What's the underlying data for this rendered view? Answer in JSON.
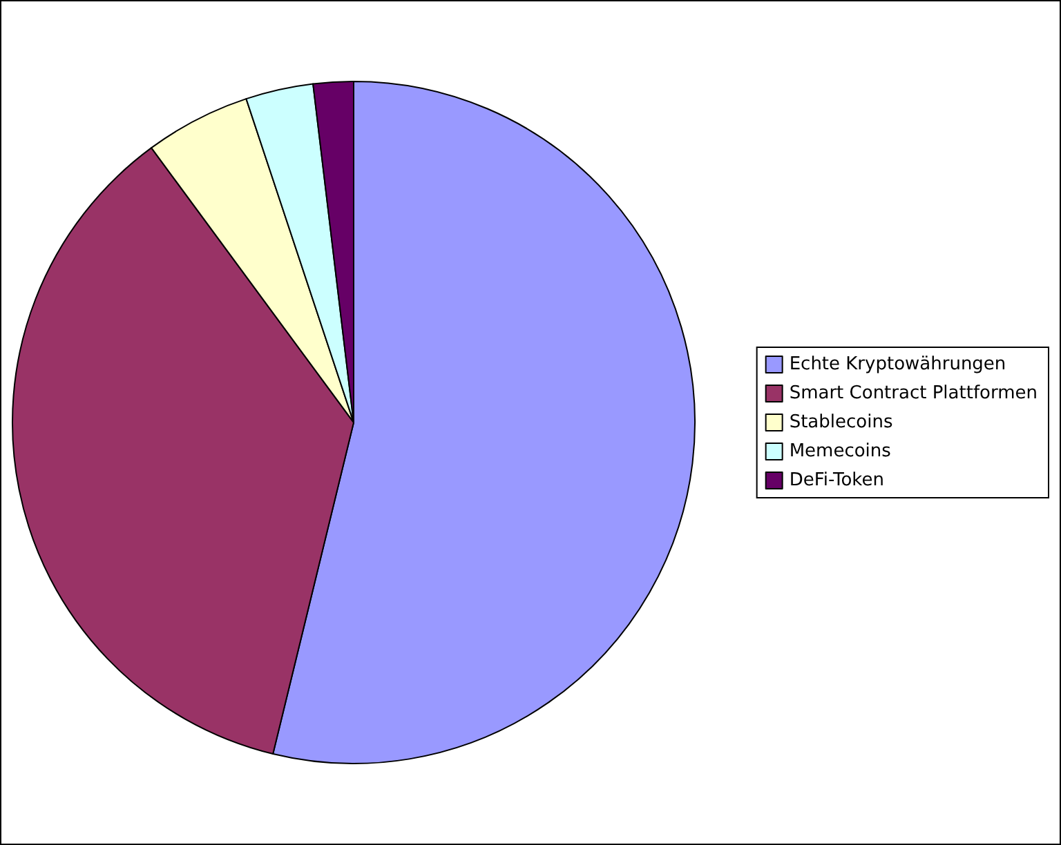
{
  "chart_data": {
    "type": "pie",
    "categories": [
      "Echte Kryptowährungen",
      "Smart Contract Plattformen",
      "Stablecoins",
      "Memecoins",
      "DeFi-Token"
    ],
    "values": [
      53.8,
      36.1,
      5.0,
      3.2,
      1.9
    ],
    "colors": [
      "#9999ff",
      "#993366",
      "#ffffcc",
      "#ccffff",
      "#660066"
    ],
    "legend": "right"
  }
}
